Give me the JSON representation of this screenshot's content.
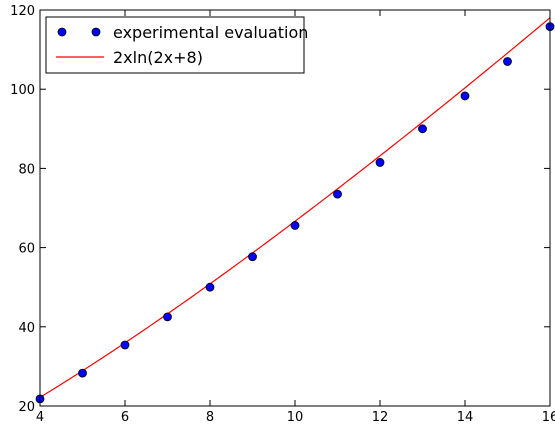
{
  "chart_data": {
    "type": "scatter",
    "title": "",
    "xlabel": "",
    "ylabel": "",
    "xlim": [
      4,
      16
    ],
    "ylim": [
      20,
      120
    ],
    "xticks": [
      4,
      6,
      8,
      10,
      12,
      14,
      16
    ],
    "yticks": [
      20,
      40,
      60,
      80,
      100,
      120
    ],
    "grid": false,
    "legend_position": "top-left",
    "series": [
      {
        "name": "experimental evaluation",
        "kind": "scatter",
        "color": "#0000ff",
        "x": [
          4,
          5,
          6,
          7,
          8,
          9,
          10,
          11,
          12,
          13,
          14,
          15,
          16
        ],
        "y": [
          21.8,
          28.3,
          35.4,
          42.5,
          50.0,
          57.7,
          65.6,
          73.5,
          81.5,
          90.0,
          98.3,
          107.0,
          115.8
        ]
      },
      {
        "name": "2xln(2x+8)",
        "kind": "line",
        "color": "#ff0000",
        "formula": "2*x*ln(2*x+8)"
      }
    ]
  }
}
